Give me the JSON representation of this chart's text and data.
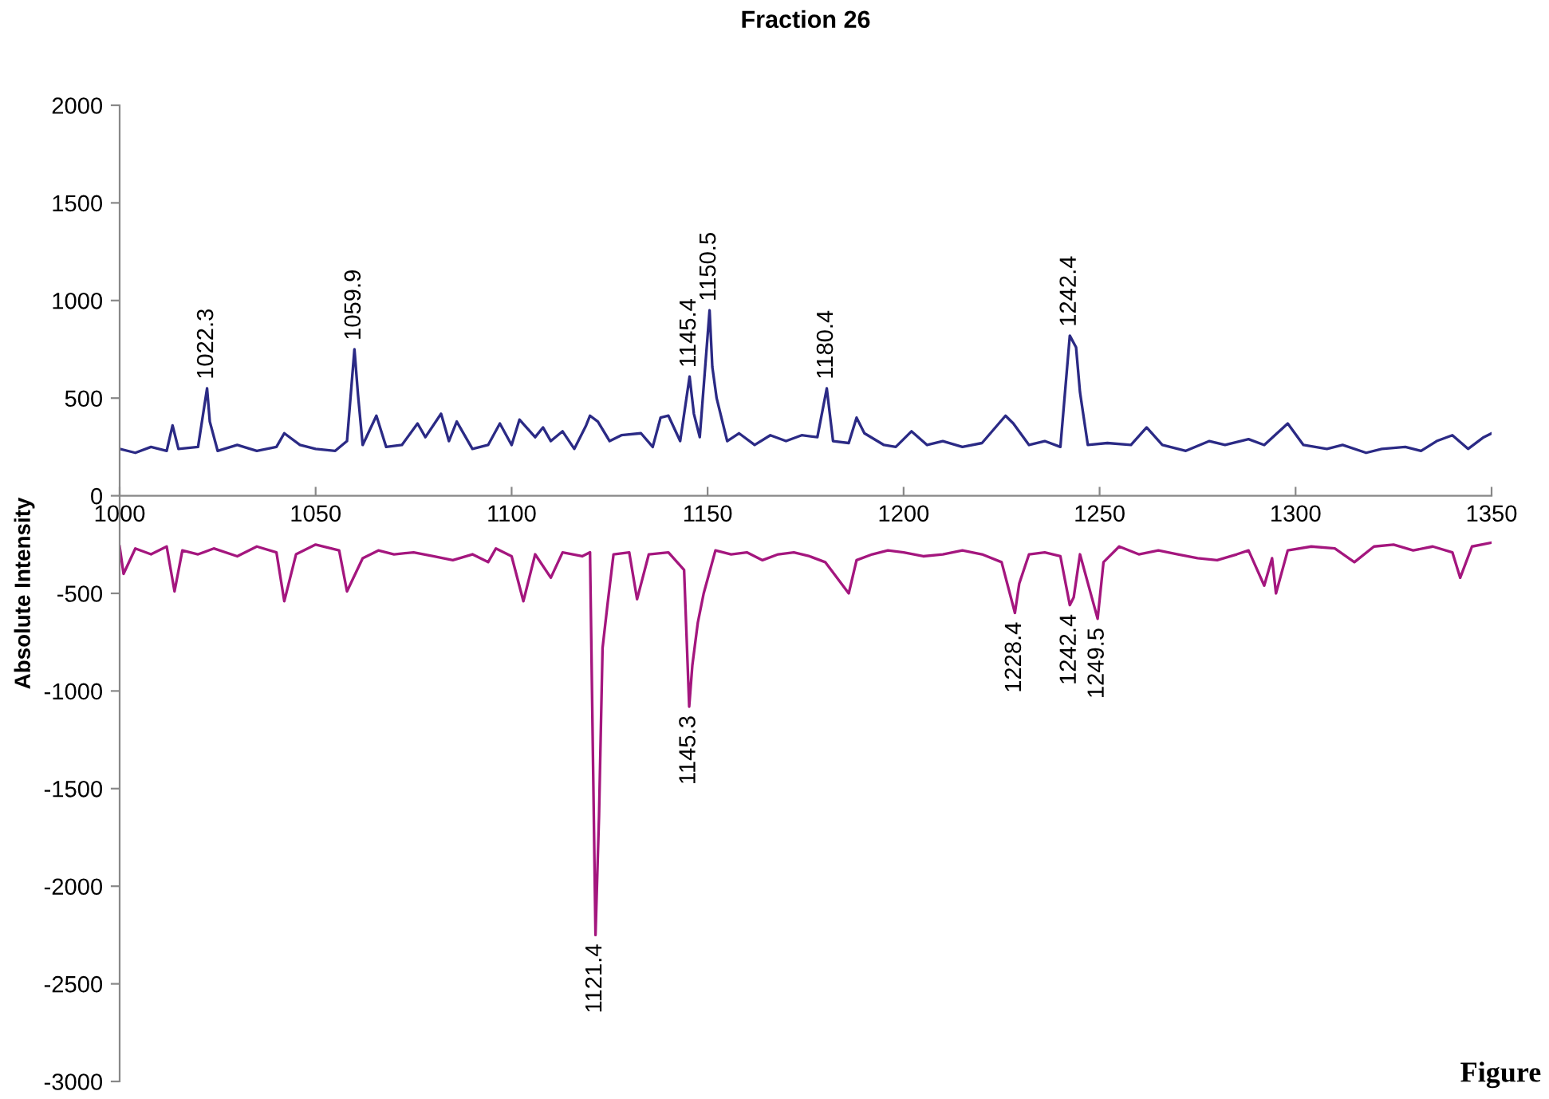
{
  "chart_data": {
    "type": "line",
    "title": "Fraction 26",
    "ylabel": "Absolute Intensity",
    "xlim": [
      1000,
      1350
    ],
    "ylim": [
      -3000,
      2000
    ],
    "xticks": [
      1000,
      1050,
      1100,
      1150,
      1200,
      1250,
      1300,
      1350
    ],
    "yticks": [
      -3000,
      -2500,
      -2000,
      -1500,
      -1000,
      -500,
      0,
      500,
      1000,
      1500,
      2000
    ],
    "grid": false,
    "legend": false,
    "marker": "none",
    "line_style": "solid",
    "series": [
      {
        "color": "#2b2a85",
        "x": [
          1000,
          1004,
          1008,
          1012,
          1013.5,
          1015,
          1020,
          1022.3,
          1023,
          1025,
          1030,
          1035,
          1040,
          1042,
          1046,
          1050,
          1055,
          1058,
          1059.9,
          1060.8,
          1062,
          1065.5,
          1068,
          1072,
          1076,
          1078,
          1082,
          1084,
          1086,
          1090,
          1094,
          1097,
          1100,
          1102,
          1106,
          1108,
          1110,
          1113,
          1116,
          1119,
          1120,
          1122,
          1125,
          1128,
          1133,
          1136,
          1138,
          1140,
          1143,
          1145.4,
          1146.5,
          1148,
          1150.5,
          1151.2,
          1152.3,
          1155,
          1158,
          1162,
          1166,
          1170,
          1174,
          1178,
          1180.4,
          1182,
          1186,
          1188,
          1190,
          1195,
          1198,
          1202,
          1206,
          1210,
          1215,
          1220,
          1226,
          1228,
          1232,
          1236,
          1240,
          1242.4,
          1244,
          1245,
          1247,
          1252,
          1258,
          1262,
          1266,
          1272,
          1278,
          1282,
          1288,
          1292,
          1298,
          1302,
          1308,
          1312,
          1318,
          1322,
          1328,
          1332,
          1336,
          1340,
          1344,
          1348,
          1350
        ],
        "values": [
          240,
          220,
          250,
          230,
          360,
          240,
          250,
          550,
          380,
          230,
          260,
          230,
          250,
          320,
          260,
          240,
          230,
          280,
          750,
          520,
          260,
          410,
          250,
          260,
          370,
          300,
          420,
          280,
          380,
          240,
          260,
          370,
          260,
          390,
          300,
          350,
          280,
          330,
          240,
          360,
          410,
          380,
          280,
          310,
          320,
          250,
          400,
          410,
          280,
          610,
          420,
          300,
          950,
          660,
          500,
          280,
          320,
          260,
          310,
          280,
          310,
          300,
          550,
          280,
          270,
          400,
          320,
          260,
          250,
          330,
          260,
          280,
          250,
          270,
          410,
          370,
          260,
          280,
          250,
          820,
          760,
          530,
          260,
          270,
          260,
          350,
          260,
          230,
          280,
          260,
          290,
          260,
          370,
          260,
          240,
          260,
          220,
          240,
          250,
          230,
          280,
          310,
          240,
          300,
          320
        ]
      },
      {
        "color": "#a4167e",
        "x": [
          1000,
          1001,
          1004,
          1008,
          1012,
          1014,
          1016,
          1020,
          1024,
          1030,
          1035,
          1040,
          1042,
          1045,
          1050,
          1056,
          1058,
          1062,
          1066,
          1070,
          1075,
          1080,
          1085,
          1090,
          1094,
          1096,
          1100,
          1103,
          1106,
          1110,
          1113,
          1118,
          1120,
          1121.4,
          1122.3,
          1123.2,
          1124.5,
          1126,
          1130,
          1132,
          1135,
          1140,
          1144,
          1145.3,
          1146.1,
          1147.5,
          1149,
          1152,
          1156,
          1160,
          1164,
          1168,
          1172,
          1176,
          1180,
          1186,
          1188,
          1192,
          1196,
          1200,
          1205,
          1210,
          1215,
          1220,
          1225,
          1228.4,
          1229.5,
          1232,
          1236,
          1240,
          1242.4,
          1243.4,
          1245,
          1248,
          1249.5,
          1251,
          1255,
          1260,
          1265,
          1270,
          1275,
          1280,
          1285,
          1288,
          1292,
          1294,
          1295,
          1298,
          1304,
          1310,
          1315,
          1320,
          1325,
          1330,
          1335,
          1340,
          1342,
          1345,
          1350
        ],
        "values": [
          -260,
          -400,
          -270,
          -300,
          -260,
          -490,
          -280,
          -300,
          -270,
          -310,
          -260,
          -290,
          -540,
          -300,
          -250,
          -280,
          -490,
          -320,
          -280,
          -300,
          -290,
          -310,
          -330,
          -300,
          -340,
          -270,
          -310,
          -540,
          -300,
          -420,
          -290,
          -310,
          -290,
          -2250,
          -1640,
          -780,
          -550,
          -300,
          -290,
          -530,
          -300,
          -290,
          -380,
          -1080,
          -870,
          -650,
          -500,
          -280,
          -300,
          -290,
          -330,
          -300,
          -290,
          -310,
          -340,
          -500,
          -330,
          -300,
          -280,
          -290,
          -310,
          -300,
          -280,
          -300,
          -340,
          -600,
          -450,
          -300,
          -290,
          -310,
          -560,
          -520,
          -300,
          -520,
          -630,
          -340,
          -260,
          -300,
          -280,
          -300,
          -320,
          -330,
          -300,
          -280,
          -460,
          -320,
          -500,
          -280,
          -260,
          -270,
          -340,
          -260,
          -250,
          -280,
          -260,
          -290,
          -420,
          -260,
          -240
        ]
      }
    ],
    "annotations": [
      {
        "text": "1022.3",
        "x": 1022.3,
        "y": 550
      },
      {
        "text": "1059.9",
        "x": 1059.9,
        "y": 750
      },
      {
        "text": "1145.4",
        "x": 1145.4,
        "y": 610
      },
      {
        "text": "1150.5",
        "x": 1150.5,
        "y": 950
      },
      {
        "text": "1180.4",
        "x": 1180.4,
        "y": 550
      },
      {
        "text": "1242.4",
        "x": 1242.4,
        "y": 820
      },
      {
        "text": "1121.4",
        "x": 1121.4,
        "y": -2250
      },
      {
        "text": "1145.3",
        "x": 1145.3,
        "y": -1080
      },
      {
        "text": "1228.4",
        "x": 1228.4,
        "y": -600
      },
      {
        "text": "1242.4",
        "x": 1242.4,
        "y": -560
      },
      {
        "text": "1249.5",
        "x": 1249.5,
        "y": -630
      },
      "Figure"
    ]
  }
}
